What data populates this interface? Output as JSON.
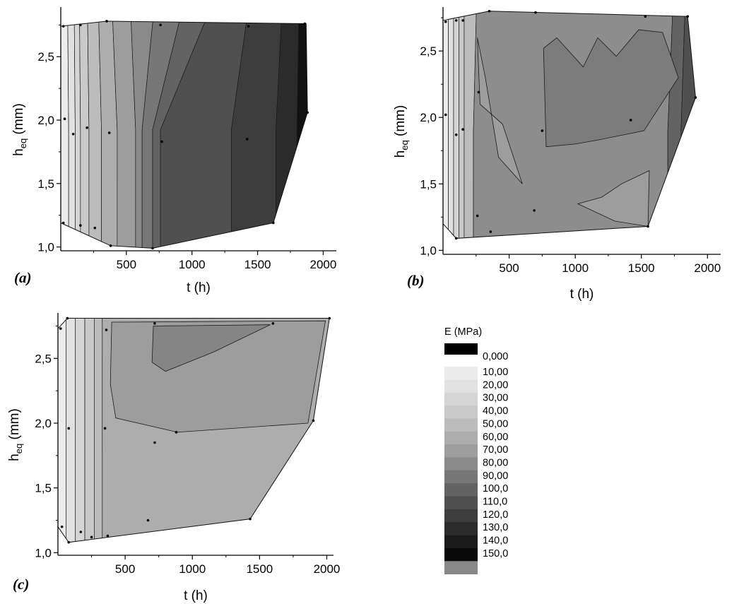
{
  "chart_data": {
    "type": "contour",
    "legend": {
      "title": "E (MPa)",
      "entries": [
        {
          "label": "0,000",
          "color": "#000000"
        },
        {
          "label": "10,00",
          "color": "#ececec"
        },
        {
          "label": "20,00",
          "color": "#e1e1e1"
        },
        {
          "label": "30,00",
          "color": "#d5d5d5"
        },
        {
          "label": "40,00",
          "color": "#c9c9c9"
        },
        {
          "label": "50,00",
          "color": "#bcbcbc"
        },
        {
          "label": "60,00",
          "color": "#adadad"
        },
        {
          "label": "70,00",
          "color": "#9d9d9d"
        },
        {
          "label": "80,00",
          "color": "#8a8a8a"
        },
        {
          "label": "90,00",
          "color": "#777777"
        },
        {
          "label": "100,0",
          "color": "#636363"
        },
        {
          "label": "110,0",
          "color": "#505050"
        },
        {
          "label": "120,0",
          "color": "#3d3d3d"
        },
        {
          "label": "130,0",
          "color": "#2b2b2b"
        },
        {
          "label": "140,0",
          "color": "#1a1a1a"
        },
        {
          "label": "150,0",
          "color": "#0a0a0a"
        },
        {
          "label": "",
          "color": "#888888"
        }
      ]
    },
    "panels": [
      {
        "label": "(a)",
        "xlabel": "t (h)",
        "ylabel_main": "h",
        "ylabel_sub": "eq",
        "ylabel_unit": " (mm)",
        "xlim": [
          0,
          2100
        ],
        "ylim": [
          0.97,
          2.88
        ],
        "xticks": [
          500,
          1000,
          1500,
          2000
        ],
        "yticks": [
          1.0,
          1.5,
          2.0,
          2.5
        ],
        "xtick_labels": [
          "500",
          "1000",
          "1500",
          "2000"
        ],
        "ytick_labels": [
          "1,0",
          "1,5",
          "2,0",
          "2,5"
        ],
        "outline": [
          [
            0,
            2.74
          ],
          [
            350,
            2.78
          ],
          [
            1870,
            2.76
          ],
          [
            1880,
            2.06
          ],
          [
            1620,
            1.19
          ],
          [
            700,
            0.99
          ],
          [
            380,
            1.01
          ],
          [
            0,
            1.19
          ]
        ],
        "points": [
          [
            20,
            2.74
          ],
          [
            150,
            2.75
          ],
          [
            350,
            2.78
          ],
          [
            760,
            2.75
          ],
          [
            1430,
            2.74
          ],
          [
            1860,
            2.76
          ],
          [
            30,
            2.01
          ],
          [
            95,
            1.89
          ],
          [
            200,
            1.94
          ],
          [
            370,
            1.9
          ],
          [
            770,
            1.83
          ],
          [
            1420,
            1.85
          ],
          [
            1880,
            2.06
          ],
          [
            20,
            1.19
          ],
          [
            150,
            1.17
          ],
          [
            260,
            1.15
          ],
          [
            380,
            1.01
          ],
          [
            700,
            0.99
          ],
          [
            1620,
            1.19
          ]
        ],
        "bands": [
          {
            "xs": [
              0,
              50,
              60
            ],
            "color": "#ececec"
          },
          {
            "xs": [
              50,
              100,
              110
            ],
            "color": "#e1e1e1"
          },
          {
            "xs": [
              100,
              140,
              150
            ],
            "color": "#d5d5d5"
          },
          {
            "xs": [
              140,
              200,
              215
            ],
            "color": "#c9c9c9"
          },
          {
            "xs": [
              200,
              280,
              310
            ],
            "color": "#bcbcbc"
          },
          {
            "xs": [
              280,
              380,
              430
            ],
            "color": "#adadad"
          },
          {
            "xs": [
              380,
              520,
              570
            ],
            "color": "#9d9d9d"
          },
          {
            "xs": [
              520,
              740,
              620
            ],
            "color": "#8a8a8a"
          },
          {
            "xs": [
              740,
              1000,
              700
            ],
            "color": "#777777"
          },
          {
            "xs": [
              1000,
              1260,
              760
            ],
            "color": "#636363"
          },
          {
            "xs": [
              1260,
              1470,
              1300
            ],
            "color": "#505050"
          },
          {
            "xs": [
              1470,
              1700,
              1640
            ],
            "color": "#3d3d3d"
          },
          {
            "xs": [
              1700,
              1820,
              1800
            ],
            "color": "#2b2b2b"
          },
          {
            "xs": [
              1820,
              2100,
              2100
            ],
            "color": "#111111"
          }
        ]
      },
      {
        "label": "(b)",
        "xlabel": "t (h)",
        "ylabel_main": "h",
        "ylabel_sub": "eq",
        "ylabel_unit": " (mm)",
        "xlim": [
          0,
          2100
        ],
        "ylim": [
          0.97,
          2.82
        ],
        "xticks": [
          500,
          1000,
          1500,
          2000
        ],
        "yticks": [
          1.0,
          1.5,
          2.0,
          2.5
        ],
        "xtick_labels": [
          "500",
          "1000",
          "1500",
          "2000"
        ],
        "ytick_labels": [
          "1,0",
          "1,5",
          "2,0",
          "2,5"
        ],
        "outline": [
          [
            0,
            2.73
          ],
          [
            350,
            2.8
          ],
          [
            1850,
            2.76
          ],
          [
            1910,
            2.15
          ],
          [
            1550,
            1.18
          ],
          [
            100,
            1.09
          ],
          [
            0,
            1.2
          ]
        ],
        "points": [
          [
            20,
            2.72
          ],
          [
            100,
            2.73
          ],
          [
            150,
            2.73
          ],
          [
            350,
            2.8
          ],
          [
            700,
            2.79
          ],
          [
            1530,
            2.76
          ],
          [
            1850,
            2.76
          ],
          [
            20,
            2.02
          ],
          [
            100,
            1.87
          ],
          [
            150,
            1.91
          ],
          [
            270,
            2.19
          ],
          [
            750,
            1.9
          ],
          [
            1420,
            1.98
          ],
          [
            1910,
            2.15
          ],
          [
            100,
            1.09
          ],
          [
            260,
            1.26
          ],
          [
            360,
            1.14
          ],
          [
            690,
            1.3
          ],
          [
            1550,
            1.18
          ]
        ],
        "bands": [
          {
            "xs": [
              0,
              40,
              40
            ],
            "color": "#ececec"
          },
          {
            "xs": [
              40,
              80,
              80
            ],
            "color": "#e1e1e1"
          },
          {
            "xs": [
              80,
              120,
              120
            ],
            "color": "#d5d5d5"
          },
          {
            "xs": [
              120,
              160,
              160
            ],
            "color": "#c9c9c9"
          },
          {
            "xs": [
              160,
              260,
              230
            ],
            "color": "#bcbcbc"
          },
          {
            "xs": [
              260,
              1750,
              1700
            ],
            "color": "#8d8d8d"
          },
          {
            "xs": [
              1750,
              1840,
              1800
            ],
            "color": "#636363"
          },
          {
            "xs": [
              1840,
              2100,
              2100
            ],
            "color": "#505050"
          }
        ],
        "regions": [
          {
            "color": "#9d9d9d",
            "poly": [
              [
                260,
                2.6
              ],
              [
                320,
                2.3
              ],
              [
                420,
                1.7
              ],
              [
                600,
                1.5
              ],
              [
                450,
                1.95
              ],
              [
                280,
                2.1
              ]
            ]
          },
          {
            "color": "#7c7c7c",
            "poly": [
              [
                760,
                2.52
              ],
              [
                860,
                2.6
              ],
              [
                1060,
                2.38
              ],
              [
                1170,
                2.6
              ],
              [
                1310,
                2.46
              ],
              [
                1480,
                2.66
              ],
              [
                1660,
                2.64
              ],
              [
                1780,
                2.3
              ],
              [
                1520,
                1.9
              ],
              [
                1170,
                1.83
              ],
              [
                1000,
                1.8
              ],
              [
                780,
                1.78
              ]
            ]
          },
          {
            "color": "#9d9d9d",
            "poly": [
              [
                1020,
                1.35
              ],
              [
                1300,
                1.22
              ],
              [
                1550,
                1.18
              ],
              [
                1560,
                1.6
              ],
              [
                1350,
                1.5
              ],
              [
                1200,
                1.4
              ]
            ]
          }
        ]
      },
      {
        "label": "(c)",
        "xlabel": "t (h)",
        "ylabel_main": "h",
        "ylabel_sub": "eq",
        "ylabel_unit": " (mm)",
        "xlim": [
          0,
          2050
        ],
        "ylim": [
          0.98,
          2.84
        ],
        "xticks": [
          500,
          1000,
          1500,
          2000
        ],
        "yticks": [
          1.0,
          1.5,
          2.0,
          2.5
        ],
        "xtick_labels": [
          "500",
          "1000",
          "1500",
          "2000"
        ],
        "ytick_labels": [
          "1,0",
          "1,5",
          "2,0",
          "2,5"
        ],
        "outline": [
          [
            0,
            2.73
          ],
          [
            70,
            2.81
          ],
          [
            2020,
            2.81
          ],
          [
            1900,
            2.02
          ],
          [
            1430,
            1.26
          ],
          [
            80,
            1.08
          ],
          [
            0,
            1.2
          ]
        ],
        "points": [
          [
            20,
            2.73
          ],
          [
            70,
            2.81
          ],
          [
            360,
            2.72
          ],
          [
            720,
            2.77
          ],
          [
            1600,
            2.77
          ],
          [
            2020,
            2.81
          ],
          [
            80,
            1.96
          ],
          [
            350,
            1.96
          ],
          [
            880,
            1.93
          ],
          [
            720,
            1.85
          ],
          [
            1900,
            2.02
          ],
          [
            30,
            1.2
          ],
          [
            80,
            1.08
          ],
          [
            170,
            1.16
          ],
          [
            250,
            1.12
          ],
          [
            370,
            1.13
          ],
          [
            670,
            1.25
          ],
          [
            1430,
            1.26
          ]
        ],
        "bands": [
          {
            "xs": [
              0,
              60,
              60
            ],
            "color": "#ececec"
          },
          {
            "xs": [
              60,
              130,
              130
            ],
            "color": "#e1e1e1"
          },
          {
            "xs": [
              130,
              200,
              200
            ],
            "color": "#d5d5d5"
          },
          {
            "xs": [
              200,
              270,
              270
            ],
            "color": "#c9c9c9"
          },
          {
            "xs": [
              270,
              330,
              330
            ],
            "color": "#bcbcbc"
          },
          {
            "xs": [
              330,
              2100,
              2100
            ],
            "color": "#adadad"
          }
        ],
        "regions": [
          {
            "color": "#9d9d9d",
            "poly": [
              [
                400,
                2.78
              ],
              [
                1990,
                2.79
              ],
              [
                1860,
                2.0
              ],
              [
                890,
                1.93
              ],
              [
                430,
                2.04
              ],
              [
                390,
                2.3
              ]
            ]
          },
          {
            "color": "#858585",
            "poly": [
              [
                710,
                2.75
              ],
              [
                1580,
                2.76
              ],
              [
                1160,
                2.55
              ],
              [
                800,
                2.4
              ],
              [
                700,
                2.47
              ]
            ]
          }
        ]
      }
    ]
  }
}
